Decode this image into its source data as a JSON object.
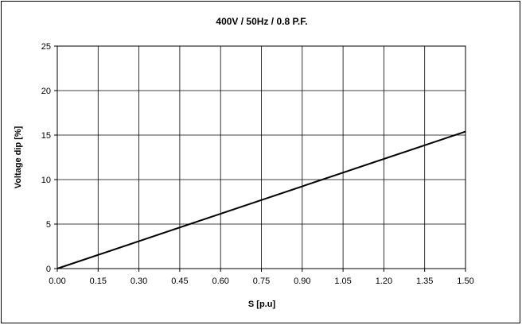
{
  "chart_data": {
    "type": "line",
    "title": "400V / 50Hz / 0.8 P.F.",
    "xlabel": "S [p.u]",
    "ylabel": "Voltage dip [%]",
    "xlim": [
      0,
      1.5
    ],
    "ylim": [
      0,
      25
    ],
    "x_ticks": [
      "0.00",
      "0.15",
      "0.30",
      "0.45",
      "0.60",
      "0.75",
      "0.90",
      "1.05",
      "1.20",
      "1.35",
      "1.50"
    ],
    "y_ticks": [
      "0",
      "5",
      "10",
      "15",
      "20",
      "25"
    ],
    "grid": true,
    "legend": "none",
    "series": [
      {
        "x": [
          0,
          1.5
        ],
        "y": [
          0,
          15.4
        ]
      }
    ],
    "colors": {
      "line": "#000000",
      "grid": "#000000",
      "background": "#ffffff"
    }
  }
}
